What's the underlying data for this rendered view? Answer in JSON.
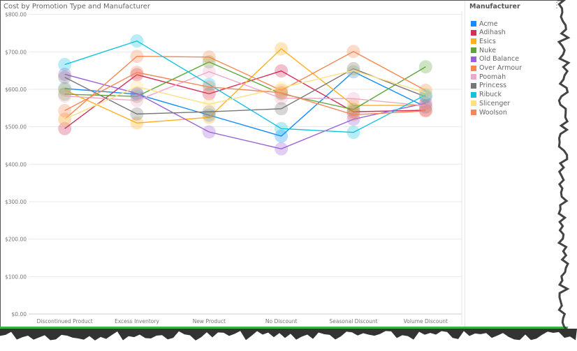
{
  "title": "Cost by Promotion Type and Manufacturer",
  "legend": {
    "title": "Manufacturer",
    "more_icon": "more-vertical-icon"
  },
  "chart_data": {
    "type": "line",
    "title": "Cost by Promotion Type and Manufacturer",
    "xlabel": "",
    "ylabel": "",
    "ylim": [
      0,
      800
    ],
    "yticks": [
      "$0.00",
      "$100.00",
      "$200.00",
      "$300.00",
      "$400.00",
      "$500.00",
      "$600.00",
      "$700.00",
      "$800.00"
    ],
    "grid": true,
    "legend_position": "right",
    "markers": "large translucent circles",
    "categories": [
      "Discontinued Product",
      "Excess Inventory",
      "New Product",
      "No Discount",
      "Seasonal Discount",
      "Volume Discount"
    ],
    "series": [
      {
        "name": "Acme",
        "color": "#118dff",
        "values": [
          602,
          587,
          531,
          475,
          647,
          553
        ]
      },
      {
        "name": "Adihash",
        "color": "#d42f5a",
        "values": [
          495,
          639,
          588,
          649,
          540,
          544
        ]
      },
      {
        "name": "Esics",
        "color": "#ffb01f",
        "values": [
          598,
          510,
          525,
          708,
          557,
          557
        ]
      },
      {
        "name": "Nuke",
        "color": "#5fa63a",
        "values": [
          587,
          581,
          673,
          588,
          546,
          660
        ]
      },
      {
        "name": "Old Balance",
        "color": "#9a5fd6",
        "values": [
          640,
          589,
          486,
          441,
          520,
          563
        ]
      },
      {
        "name": "Over Armour",
        "color": "#f6874f",
        "values": [
          520,
          688,
          686,
          597,
          701,
          597
        ]
      },
      {
        "name": "Poomah",
        "color": "#f0a6c8",
        "values": [
          582,
          570,
          647,
          576,
          575,
          556
        ]
      },
      {
        "name": "Princess",
        "color": "#777777",
        "values": [
          632,
          534,
          540,
          548,
          655,
          580
        ]
      },
      {
        "name": "Ribuck",
        "color": "#14c2e0",
        "values": [
          666,
          729,
          613,
          495,
          485,
          585
        ]
      },
      {
        "name": "Slicenger",
        "color": "#ffe082",
        "values": [
          520,
          607,
          560,
          604,
          650,
          591
        ]
      },
      {
        "name": "Woolson",
        "color": "#f5875a",
        "values": [
          543,
          645,
          606,
          591,
          532,
          542
        ]
      }
    ]
  }
}
